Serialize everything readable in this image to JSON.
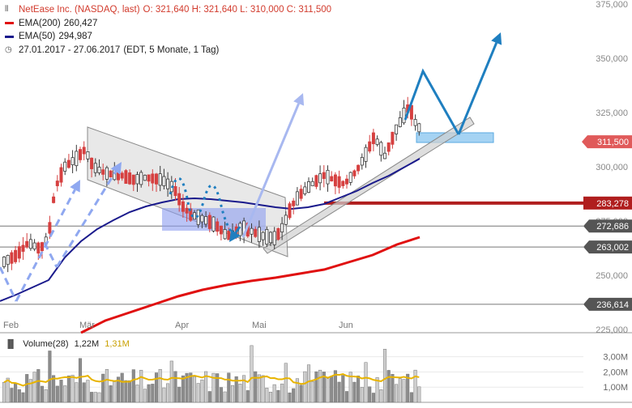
{
  "legend": {
    "title": "NetEase Inc. (NASDAQ, last)",
    "ohlc": "O: 321,640  H: 321,640  L: 310,000  C: 311,500",
    "ema200_label": "EMA(200)",
    "ema200_value": "260,427",
    "ema50_label": "EMA(50)",
    "ema50_value": "294,987",
    "range": "27.01.2017 - 27.06.2017",
    "range_info": "(EDT, 5 Monate, 1 Tag)",
    "icon_chart": "candlestick-icon",
    "icon_clock": "clock-icon"
  },
  "volume": {
    "label": "Volume(28)",
    "value1": "1,22M",
    "value2": "1,31M",
    "ticks": [
      "3,00M",
      "2,00M",
      "1,00M"
    ]
  },
  "colors": {
    "ema200": "#e01010",
    "ema50": "#1a1a8c",
    "price_badge": "#e05a5a",
    "resistance": "#b01e1e",
    "blue_arrow": "#1f7fc0",
    "volume_avg": "#e8b400",
    "channel": "#c8c8c8"
  },
  "chart_data": {
    "type": "candlestick",
    "x_tick_labels": [
      "Feb",
      "Mär",
      "Apr",
      "Mai",
      "Jun"
    ],
    "y_tick_labels": [
      "375,000",
      "350,000",
      "325,000",
      "300,000",
      "275,000",
      "250,000",
      "225,000"
    ],
    "ylim": [
      225,
      375
    ],
    "series": [
      {
        "name": "EMA(200)",
        "value": 260.427
      },
      {
        "name": "EMA(50)",
        "value": 294.987
      }
    ],
    "last_price": "311,500",
    "levels": [
      {
        "label": "283,278",
        "value": 283.278,
        "style": "resistance"
      },
      {
        "label": "272,686",
        "value": 272.686,
        "style": "line"
      },
      {
        "label": "263,002",
        "value": 263.002,
        "style": "line"
      },
      {
        "label": "236,614",
        "value": 236.614,
        "style": "line"
      }
    ]
  }
}
